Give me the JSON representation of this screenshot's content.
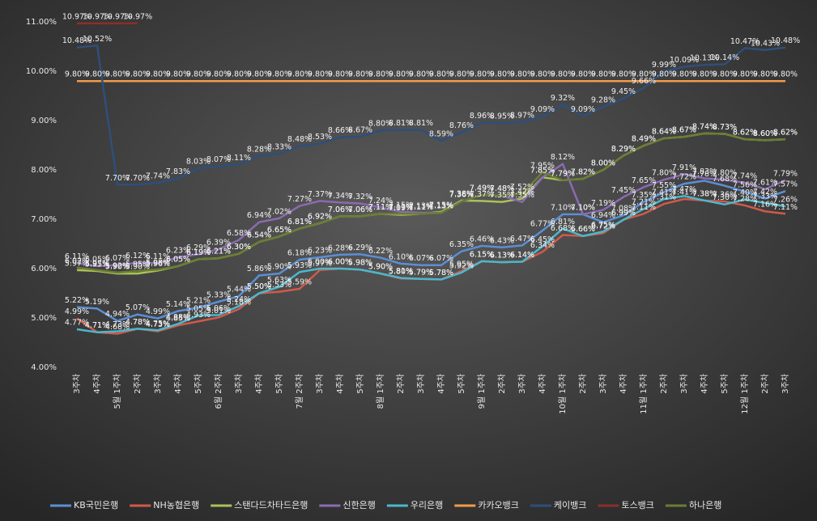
{
  "chart_data": {
    "type": "line",
    "categories": [
      "3주차",
      "4주차",
      "5월 1주차",
      "2주차",
      "3주차",
      "4주차",
      "5주차",
      "6월 2주차",
      "3주차",
      "4주차",
      "5주차",
      "7월 2주차",
      "3주차",
      "4주차",
      "5주차",
      "8월 1주차",
      "2주차",
      "3주차",
      "4주차",
      "5주차",
      "9월 1주차",
      "2주차",
      "3주차",
      "4주차",
      "10월 1주차",
      "2주차",
      "3주차",
      "4주차",
      "11월 1주차",
      "2주차",
      "3주차",
      "4주차",
      "5주차",
      "12월 1주차",
      "2주차",
      "3주차"
    ],
    "ylim": [
      4,
      11
    ],
    "yticks": [
      {
        "value": 4,
        "label": "4.00%"
      },
      {
        "value": 5,
        "label": "5.00%"
      },
      {
        "value": 6,
        "label": "6.00%"
      },
      {
        "value": 7,
        "label": "7.00%"
      },
      {
        "value": 8,
        "label": "8.00%"
      },
      {
        "value": 9,
        "label": "9.00%"
      },
      {
        "value": 10,
        "label": "10.00%"
      },
      {
        "value": 11,
        "label": "11.00%"
      }
    ],
    "grid": false,
    "legend": "bottom",
    "series": [
      {
        "name": "KB국민은행",
        "color": "#5b8fd6",
        "values": [
          5.22,
          5.19,
          4.94,
          5.07,
          4.99,
          5.14,
          5.21,
          5.33,
          5.44,
          5.86,
          5.9,
          6.18,
          6.23,
          6.28,
          6.29,
          6.22,
          6.1,
          6.07,
          6.07,
          6.35,
          6.46,
          6.43,
          6.47,
          6.77,
          7.1,
          7.1,
          6.94,
          7.08,
          7.35,
          7.55,
          7.72,
          7.78,
          7.68,
          7.56,
          7.42,
          7.57
        ],
        "value_labels": [
          "5.22%",
          "5.19%",
          "4.94%",
          "5.07%",
          "4.99%",
          "5.14%",
          "5.21%",
          "5.33%",
          "5.44%",
          "5.86%",
          "5.90%",
          "6.18%",
          "6.23%",
          "6.28%",
          "6.29%",
          "6.22%",
          "6.10%",
          "6.07%",
          "6.07%",
          "6.35%",
          "6.46%",
          "6.43%",
          "6.47%",
          "6.77%",
          "7.10%",
          "7.10%",
          "6.94%",
          "7.08%",
          "7.35%",
          "7.55%",
          "7.72%",
          "7.78%",
          "7.68%",
          "7.56%",
          "7.42%",
          "7.57%"
        ]
      },
      {
        "name": "NH농협은행",
        "color": "#d05a4a",
        "values": [
          4.99,
          4.71,
          4.68,
          4.78,
          4.73,
          4.85,
          4.93,
          5.01,
          5.18,
          5.5,
          5.53,
          5.59,
          5.97,
          6.0,
          5.98,
          5.9,
          5.8,
          5.79,
          5.78,
          5.95,
          6.15,
          6.13,
          6.14,
          6.34,
          6.68,
          6.66,
          6.72,
          6.99,
          7.11,
          7.31,
          7.41,
          7.38,
          7.36,
          7.28,
          7.16,
          7.11
        ],
        "value_labels": [
          "4.99%",
          "4.71%",
          "4.68%",
          "4.78%",
          "4.73%",
          "4.85%",
          "4.93%",
          "5.01%",
          "5.18%",
          "5.50%",
          "5.53%",
          "5.59%",
          "5.97%",
          "6.00%",
          "5.98%",
          "5.90%",
          "5.80%",
          "5.79%",
          "5.78%",
          "5.95%",
          "6.15%",
          "6.13%",
          "6.14%",
          "6.34%",
          "6.68%",
          "6.66%",
          "6.72%",
          "6.99%",
          "7.11%",
          "7.31%",
          "7.41%",
          "7.38%",
          "7.36%",
          "7.28%",
          "7.16%",
          "7.11%"
        ]
      },
      {
        "name": "스탠다드차타드은행",
        "color": "#a9c25a",
        "values": [
          5.97,
          5.95,
          5.9,
          5.9,
          5.96,
          6.05,
          6.19,
          6.21,
          6.3,
          6.54,
          6.65,
          6.81,
          6.92,
          7.06,
          7.06,
          7.11,
          7.09,
          7.11,
          7.15,
          7.38,
          7.37,
          7.35,
          7.42,
          7.85,
          7.79,
          7.82,
          8.0,
          8.29,
          8.49,
          8.64,
          8.67,
          8.74,
          8.73,
          8.62,
          8.6,
          8.62
        ],
        "value_labels": [
          "5.97%",
          "5.95%",
          "5.90%",
          "5.90%",
          "5.96%",
          "6.05%",
          "6.19%",
          "6.21%",
          "6.30%",
          "6.54%",
          "6.65%",
          "6.81%",
          "6.92%",
          "7.06%",
          "7.06%",
          "7.11%",
          "7.09%",
          "7.11%",
          "7.15%",
          "7.38%",
          "7.37%",
          "7.35%",
          "7.42%",
          "7.85%",
          "7.79%",
          "7.82%",
          "8.00%",
          "8.29%",
          "8.49%",
          "8.64%",
          "8.67%",
          "8.74%",
          "8.73%",
          "8.62%",
          "8.60%",
          "8.62%"
        ]
      },
      {
        "name": "신한은행",
        "color": "#8a6bb0",
        "values": [
          6.11,
          6.05,
          6.07,
          6.12,
          6.11,
          6.23,
          6.29,
          6.39,
          6.58,
          6.94,
          7.02,
          7.27,
          7.37,
          7.34,
          7.32,
          7.24,
          7.15,
          7.13,
          7.13,
          7.36,
          7.49,
          7.48,
          7.35,
          7.85,
          8.12,
          7.1,
          7.19,
          7.45,
          7.65,
          7.8,
          7.91,
          7.83,
          7.8,
          7.74,
          7.61,
          7.79
        ],
        "value_labels": [
          "6.11%",
          "6.05%",
          "6.07%",
          "6.12%",
          "6.11%",
          "6.23%",
          "6.29%",
          "6.39%",
          "6.58%",
          "6.94%",
          "7.02%",
          "7.27%",
          "7.37%",
          "7.34%",
          "7.32%",
          "7.24%",
          "7.15%",
          "7.13%",
          "7.13%",
          "7.36%",
          "7.49%",
          "7.48%",
          "7.35%",
          "7.85%",
          "8.12%",
          "7.10%",
          "7.19%",
          "7.45%",
          "7.65%",
          "7.80%",
          "7.91%",
          "7.83%",
          "7.80%",
          "7.74%",
          "7.61%",
          "7.79%"
        ]
      },
      {
        "name": "우리은행",
        "color": "#4bb8cc",
        "values": [
          4.77,
          4.71,
          4.73,
          4.78,
          4.75,
          4.88,
          5.05,
          5.06,
          5.24,
          5.5,
          5.63,
          5.93,
          6.0,
          6.0,
          5.98,
          5.9,
          5.81,
          5.79,
          5.78,
          5.92,
          6.15,
          6.13,
          6.14,
          6.45,
          6.81,
          6.66,
          6.75,
          6.99,
          7.21,
          7.41,
          7.47,
          7.38,
          7.3,
          7.4,
          7.33,
          7.26
        ],
        "value_labels": [
          "4.77%",
          "4.71%",
          "4.73%",
          "4.78%",
          "4.75%",
          "4.88%",
          "5.05%",
          "5.06%",
          "5.24%",
          "5.50%",
          "5.63%",
          "5.93%",
          "6.00%",
          "6.00%",
          "5.98%",
          "5.90%",
          "5.81%",
          "5.79%",
          "5.78%",
          "5.92%",
          "6.15%",
          "6.13%",
          "6.14%",
          "6.45%",
          "6.81%",
          "6.66%",
          "6.75%",
          "6.99%",
          "7.21%",
          "7.41%",
          "7.47%",
          "7.38%",
          "7.30%",
          "7.40%",
          "7.33%",
          "7.26%"
        ]
      },
      {
        "name": "카카오뱅크",
        "color": "#f29a4a",
        "values": [
          9.8,
          9.8,
          9.8,
          9.8,
          9.8,
          9.8,
          9.8,
          9.8,
          9.8,
          9.8,
          9.8,
          9.8,
          9.8,
          9.8,
          9.8,
          9.8,
          9.8,
          9.8,
          9.8,
          9.8,
          9.8,
          9.8,
          9.8,
          9.8,
          9.8,
          9.8,
          9.8,
          9.8,
          9.8,
          9.8,
          9.8,
          9.8,
          9.8,
          9.8,
          9.8,
          9.8
        ],
        "value_labels": [
          "9.80%",
          "9.80%",
          "9.80%",
          "9.80%",
          "9.80%",
          "9.80%",
          "9.80%",
          "9.80%",
          "9.80%",
          "9.80%",
          "9.80%",
          "9.80%",
          "9.80%",
          "9.80%",
          "9.80%",
          "9.80%",
          "9.80%",
          "9.80%",
          "9.80%",
          "9.80%",
          "9.80%",
          "9.80%",
          "9.80%",
          "9.80%",
          "9.80%",
          "9.80%",
          "9.80%",
          "9.80%",
          "9.80%",
          "9.80%",
          "9.80%",
          "9.80%",
          "9.80%",
          "9.80%",
          "9.80%",
          "9.80%"
        ]
      },
      {
        "name": "케이뱅크",
        "color": "#2e4f7a",
        "values": [
          10.48,
          10.52,
          7.7,
          7.7,
          7.74,
          7.83,
          8.03,
          8.07,
          8.11,
          8.28,
          8.33,
          8.48,
          8.53,
          8.66,
          8.67,
          8.8,
          8.81,
          8.81,
          8.59,
          8.76,
          8.96,
          8.95,
          8.97,
          9.09,
          9.32,
          9.09,
          9.28,
          9.45,
          9.66,
          9.99,
          10.09,
          10.13,
          10.14,
          10.47,
          10.43,
          10.48
        ],
        "value_labels": [
          "10.48%",
          "10.52%",
          "7.70%",
          "7.70%",
          "7.74%",
          "7.83%",
          "8.03%",
          "8.07%",
          "8.11%",
          "8.28%",
          "8.33%",
          "8.48%",
          "8.53%",
          "8.66%",
          "8.67%",
          "8.80%",
          "8.81%",
          "8.81%",
          "8.59%",
          "8.76%",
          "8.96%",
          "8.95%",
          "8.97%",
          "9.09%",
          "9.32%",
          "9.09%",
          "9.28%",
          "9.45%",
          "9.66%",
          "9.99%",
          "10.09%",
          "10.13%",
          "10.14%",
          "10.47%",
          "10.43%",
          "10.48%"
        ]
      },
      {
        "name": "토스뱅크",
        "color": "#8b2f2a",
        "values": [
          10.97,
          10.97,
          10.97,
          10.97,
          null,
          null,
          null,
          null,
          null,
          null,
          null,
          null,
          null,
          null,
          null,
          null,
          null,
          null,
          null,
          null,
          null,
          null,
          null,
          null,
          null,
          null,
          null,
          null,
          null,
          null,
          null,
          null,
          null,
          null,
          null,
          null
        ],
        "value_labels": [
          "10.97%",
          "10.97%",
          "10.97%",
          "10.97%",
          null,
          null,
          null,
          null,
          null,
          null,
          null,
          null,
          null,
          null,
          null,
          null,
          null,
          null,
          null,
          null,
          null,
          null,
          null,
          null,
          null,
          null,
          null,
          null,
          null,
          null,
          null,
          null,
          null,
          null,
          null,
          null
        ]
      },
      {
        "name": "하나은행",
        "color": "#6b7d34",
        "values": [
          6.02,
          5.97,
          5.92,
          5.95,
          5.98,
          6.05,
          6.19,
          6.21,
          6.3,
          6.54,
          6.65,
          6.81,
          6.92,
          7.06,
          7.06,
          7.11,
          7.11,
          7.11,
          7.13,
          7.36,
          7.49,
          7.48,
          7.52,
          7.95,
          7.79,
          7.82,
          8.0,
          8.29,
          8.49,
          8.64,
          8.67,
          8.74,
          8.73,
          8.62,
          8.6,
          8.62
        ],
        "value_labels": [
          "6.02%",
          "5.97%",
          "5.92%",
          "5.95%",
          "5.98%",
          "6.05%",
          "6.19%",
          "6.21%",
          "6.30%",
          "6.54%",
          "6.65%",
          "6.81%",
          "6.92%",
          "7.06%",
          "7.06%",
          "7.11%",
          "7.11%",
          "7.11%",
          "7.13%",
          "7.36%",
          "7.49%",
          "7.48%",
          "7.52%",
          "7.95%",
          "7.79%",
          "7.82%",
          "8.00%",
          "8.29%",
          "8.49%",
          "8.64%",
          "8.67%",
          "8.74%",
          "8.73%",
          "8.62%",
          "8.60%",
          "8.62%"
        ]
      }
    ]
  }
}
